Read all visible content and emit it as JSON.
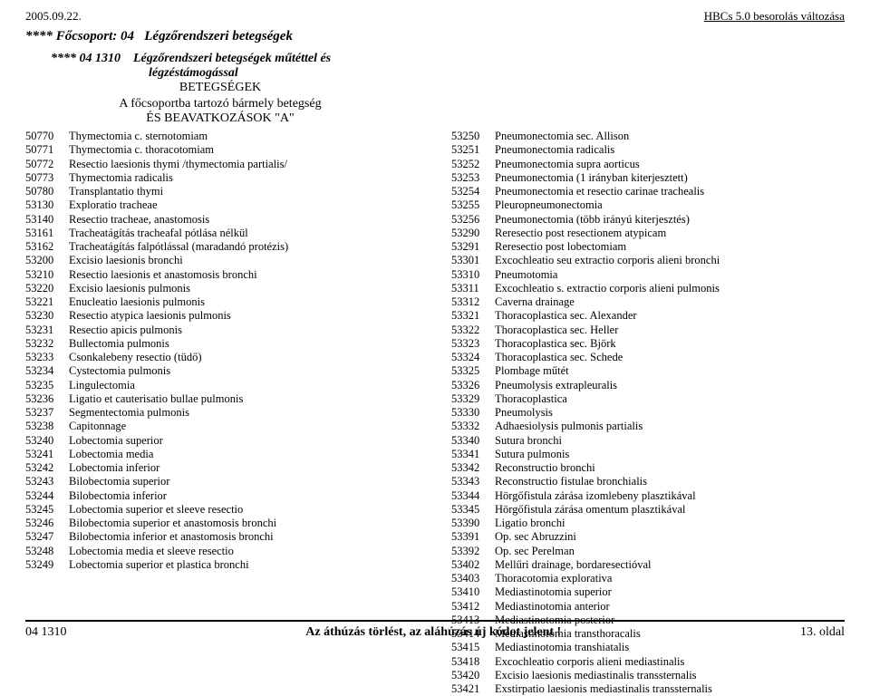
{
  "top": {
    "date": "2005.09.22.",
    "right": "HBCs 5.0 besorolás változása"
  },
  "group_prefix": "**** Főcsoport: 04",
  "group_title": "Légzőrendszeri betegségek",
  "subgroup_code": "**** 04 1310",
  "subgroup_desc1": "Légzőrendszeri betegségek műtéttel és",
  "subgroup_desc2": "légzéstámogással",
  "subhead1": "BETEGSÉGEK",
  "subhead2": "A főcsoportba tartozó bármely betegség",
  "subhead3": "ÉS BEAVATKOZÁSOK \"A\"",
  "left": [
    [
      "50770",
      "Thymectomia c. sternotomiam"
    ],
    [
      "50771",
      "Thymectomia c. thoracotomiam"
    ],
    [
      "50772",
      "Resectio laesionis thymi /thymectomia partialis/"
    ],
    [
      "50773",
      "Thymectomia radicalis"
    ],
    [
      "50780",
      "Transplantatio thymi"
    ],
    [
      "53130",
      "Exploratio tracheae"
    ],
    [
      "53140",
      "Resectio tracheae, anastomosis"
    ],
    [
      "53161",
      "Tracheatágítás tracheafal pótlása nélkül"
    ],
    [
      "53162",
      "Tracheatágítás falpótlással (maradandó protézis)"
    ],
    [
      "53200",
      "Excisio   laesionis bronchi"
    ],
    [
      "53210",
      "Resectio   laesionis et anastomosis bronchi"
    ],
    [
      "53220",
      "Excisio   laesionis pulmonis"
    ],
    [
      "53221",
      "Enucleatio laesionis pulmonis"
    ],
    [
      "53230",
      "Resectio atypica laesionis pulmonis"
    ],
    [
      "53231",
      "Resectio apicis pulmonis"
    ],
    [
      "53232",
      "Bullectomia pulmonis"
    ],
    [
      "53233",
      "Csonkalebeny resectio (tüdő)"
    ],
    [
      "53234",
      "Cystectomia pulmonis"
    ],
    [
      "53235",
      "Lingulectomia"
    ],
    [
      "53236",
      "Ligatio et cauterisatio bullae pulmonis"
    ],
    [
      "53237",
      "Segmentectomia pulmonis"
    ],
    [
      "53238",
      "Capitonnage"
    ],
    [
      "53240",
      "Lobectomia   superior"
    ],
    [
      "53241",
      "Lobectomia   media"
    ],
    [
      "53242",
      "Lobectomia   inferior"
    ],
    [
      "53243",
      "Bilobectomia superior"
    ],
    [
      "53244",
      "Bilobectomia inferior"
    ],
    [
      "53245",
      "Lobectomia   superior et sleeve resectio"
    ],
    [
      "53246",
      "Bilobectomia superior et anastomosis bronchi"
    ],
    [
      "53247",
      "Bilobectomia inferior et anastomosis bronchi"
    ],
    [
      "53248",
      "Lobectomia   media et sleeve resectio"
    ],
    [
      "53249",
      "Lobectomia   superior et plastica bronchi"
    ]
  ],
  "right": [
    [
      "53250",
      "Pneumonectomia sec. Allison"
    ],
    [
      "53251",
      "Pneumonectomia radicalis"
    ],
    [
      "53252",
      "Pneumonectomia supra aorticus"
    ],
    [
      "53253",
      "Pneumonectomia (1 irányban kiterjesztett)"
    ],
    [
      "53254",
      "Pneumonectomia et resectio carinae trachealis"
    ],
    [
      "53255",
      "Pleuropneumonectomia"
    ],
    [
      "53256",
      "Pneumonectomia (több irányú kiterjesztés)"
    ],
    [
      "53290",
      "Reresectio post resectionem atypicam"
    ],
    [
      "53291",
      "Reresectio post lobectomiam"
    ],
    [
      "53301",
      "Excochleatio seu extractio corporis alieni bronchi"
    ],
    [
      "53310",
      "Pneumotomia"
    ],
    [
      "53311",
      "Excochleatio s. extractio corporis alieni pulmonis"
    ],
    [
      "53312",
      "Caverna drainage"
    ],
    [
      "53321",
      "Thoracoplastica sec. Alexander"
    ],
    [
      "53322",
      "Thoracoplastica sec. Heller"
    ],
    [
      "53323",
      "Thoracoplastica sec. Björk"
    ],
    [
      "53324",
      "Thoracoplastica sec. Schede"
    ],
    [
      "53325",
      "Plombage műtét"
    ],
    [
      "53326",
      "Pneumolysis extrapleuralis"
    ],
    [
      "53329",
      "Thoracoplastica"
    ],
    [
      "53330",
      "Pneumolysis"
    ],
    [
      "53332",
      "Adhaesiolysis pulmonis partialis"
    ],
    [
      "53340",
      "Sutura bronchi"
    ],
    [
      "53341",
      "Sutura pulmonis"
    ],
    [
      "53342",
      "Reconstructio bronchi"
    ],
    [
      "53343",
      "Reconstructio fistulae bronchialis"
    ],
    [
      "53344",
      "Hörgőfistula zárása izomlebeny plasztikával"
    ],
    [
      "53345",
      "Hörgőfistula zárása omentum plasztikával"
    ],
    [
      "53390",
      "Ligatio bronchi"
    ],
    [
      "53391",
      "Op. sec Abruzzini"
    ],
    [
      "53392",
      "Op. sec Perelman"
    ],
    [
      "53402",
      "Mellűri drainage, bordaresectióval"
    ],
    [
      "53403",
      "Thoracotomia explorativa"
    ],
    [
      "53410",
      "Mediastinotomia superior"
    ],
    [
      "53412",
      "Mediastinotomia anterior"
    ],
    [
      "53413",
      "Mediastinotomia posterior"
    ],
    [
      "53414",
      "Mediastinotomia transthoracalis"
    ],
    [
      "53415",
      "Mediastinotomia transhiatalis"
    ],
    [
      "53418",
      "Excochleatio corporis alieni mediastinalis"
    ],
    [
      "53420",
      "Excisio laesionis mediastinalis transsternalis"
    ],
    [
      "53421",
      "Exstirpatio laesionis mediastinalis transsternalis"
    ]
  ],
  "footer": {
    "left": "04 1310",
    "mid": "Az áthúzás törlést, az aláhúzás új kódot jelent !",
    "right": "13. oldal"
  }
}
